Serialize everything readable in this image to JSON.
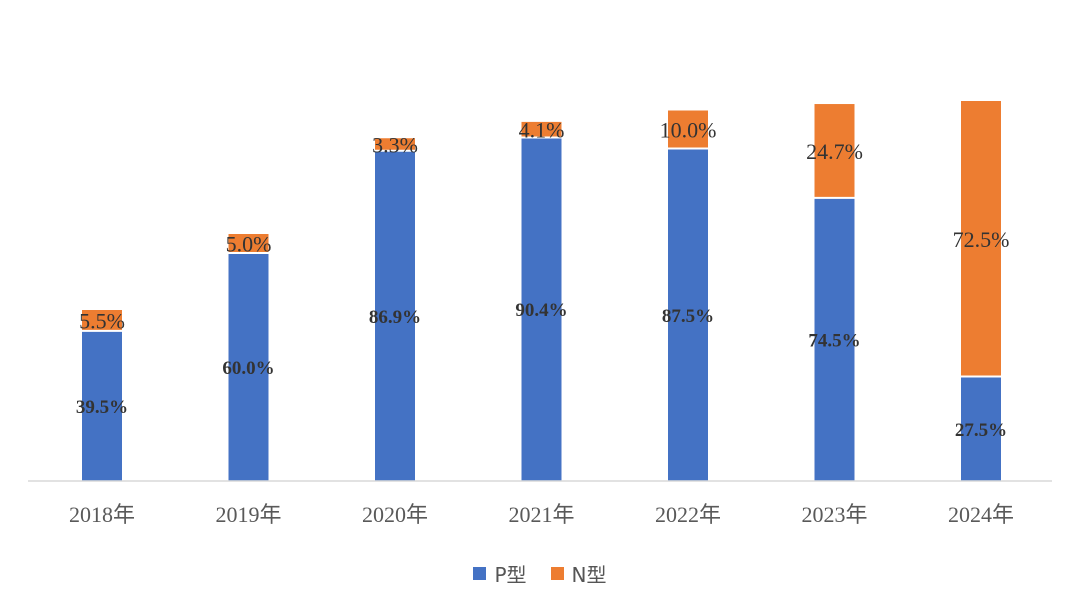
{
  "chart_data": {
    "type": "bar",
    "stacked": true,
    "categories": [
      "2018年",
      "2019年",
      "2020年",
      "2021年",
      "2022年",
      "2023年",
      "2024年"
    ],
    "series": [
      {
        "name": "P型",
        "color": "#4472C4",
        "values": [
          39.5,
          60.0,
          86.9,
          90.4,
          87.5,
          74.5,
          27.5
        ],
        "labels": [
          "39.5%",
          "60.0%",
          "86.9%",
          "90.4%",
          "87.5%",
          "74.5%",
          "27.5%"
        ]
      },
      {
        "name": "N型",
        "color": "#ED7D31",
        "values": [
          5.5,
          5.0,
          3.3,
          4.1,
          10.0,
          24.7,
          72.5
        ],
        "labels": [
          "5.5%",
          "5.0%",
          "3.3%",
          "4.1%",
          "10.0%",
          "24.7%",
          "72.5%"
        ]
      }
    ],
    "ylim": [
      0,
      100
    ],
    "grid": false,
    "legend_position": "bottom"
  }
}
